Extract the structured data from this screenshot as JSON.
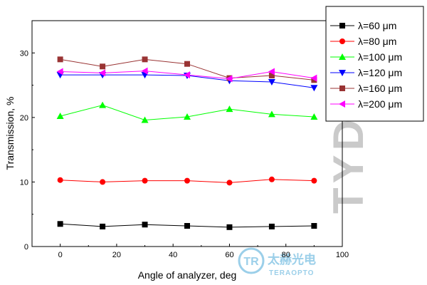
{
  "chart_data": {
    "type": "line",
    "xlabel": "Angle of analyzer, deg",
    "ylabel": "Transmission, %",
    "xlim": [
      -10,
      100
    ],
    "ylim": [
      0,
      35
    ],
    "xticks": [
      0,
      20,
      40,
      60,
      80,
      100
    ],
    "yticks": [
      0,
      10,
      20,
      30
    ],
    "grid": false,
    "legend_position": "top-right",
    "x": [
      0,
      15,
      30,
      45,
      60,
      75,
      90
    ],
    "series": [
      {
        "name": "λ=60 μm",
        "color": "#000000",
        "marker": "square",
        "values": [
          3.5,
          3.1,
          3.4,
          3.2,
          3.0,
          3.1,
          3.2
        ]
      },
      {
        "name": "λ=80 μm",
        "color": "#ff0000",
        "marker": "circle",
        "values": [
          10.3,
          10.0,
          10.2,
          10.2,
          9.9,
          10.4,
          10.2
        ]
      },
      {
        "name": "λ=100 μm",
        "color": "#00ff00",
        "marker": "triangle-up",
        "values": [
          20.2,
          21.9,
          19.6,
          20.1,
          21.3,
          20.5,
          20.1
        ]
      },
      {
        "name": "λ=120 μm",
        "color": "#0000ff",
        "marker": "triangle-down",
        "values": [
          26.6,
          26.6,
          26.6,
          26.5,
          25.7,
          25.5,
          24.6
        ]
      },
      {
        "name": "λ=160 μm",
        "color": "#993333",
        "marker": "square",
        "values": [
          29.0,
          27.9,
          29.0,
          28.3,
          26.1,
          26.5,
          25.8
        ]
      },
      {
        "name": "λ=200 μm",
        "color": "#ff00ff",
        "marker": "triangle-left",
        "values": [
          27.1,
          26.9,
          27.2,
          26.6,
          26.0,
          27.1,
          26.1
        ]
      }
    ]
  },
  "watermark": {
    "vertical_text": "TYDEX",
    "logo_text": "TR",
    "cn_text": "太赫光电",
    "en_text": "TERAOPTO"
  }
}
